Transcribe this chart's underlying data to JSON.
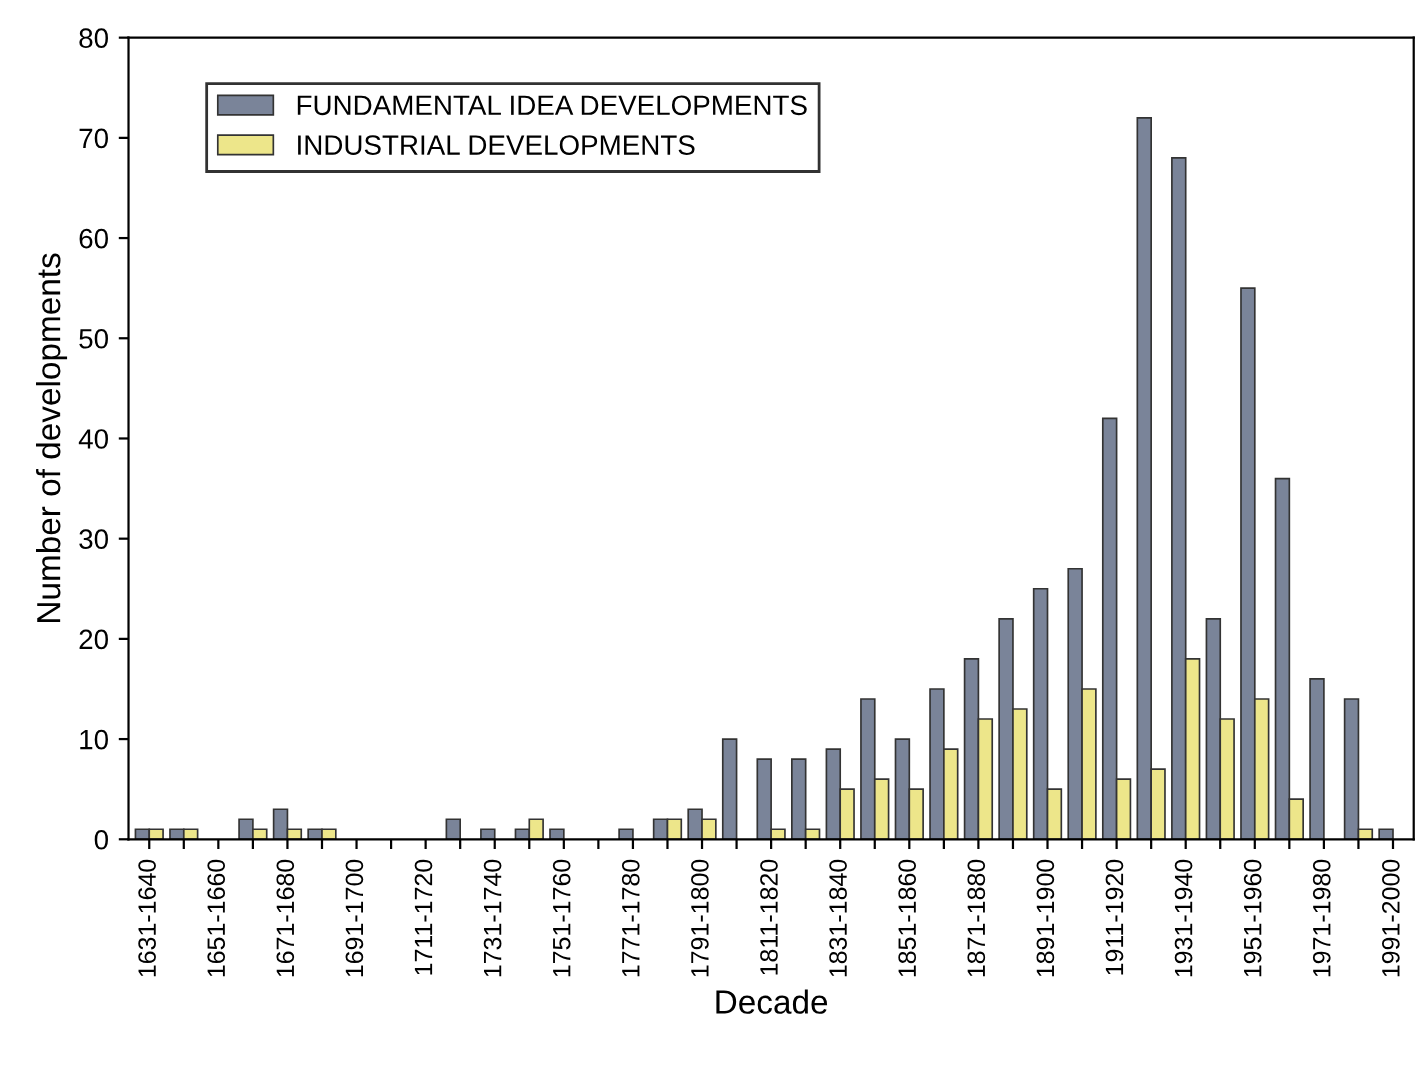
{
  "chart_data": {
    "type": "bar",
    "xlabel": "Decade",
    "ylabel": "Number of developments",
    "categories": [
      "1631-1640",
      null,
      "1651-1660",
      null,
      "1671-1680",
      null,
      "1691-1700",
      null,
      "1711-1720",
      null,
      "1731-1740",
      null,
      "1751-1760",
      null,
      "1771-1780",
      null,
      "1791-1800",
      null,
      "1811-1820",
      null,
      "1831-1840",
      null,
      "1851-1860",
      null,
      "1871-1880",
      null,
      "1891-1900",
      null,
      "1911-1920",
      null,
      "1931-1940",
      null,
      "1951-1960",
      null,
      "1971-1980",
      null,
      "1991-2000"
    ],
    "series": [
      {
        "name": "FUNDAMENTAL IDEA DEVELOPMENTS",
        "color": "#7a8499",
        "values": [
          1,
          1,
          0,
          2,
          3,
          1,
          0,
          0,
          0,
          2,
          1,
          1,
          1,
          0,
          1,
          2,
          3,
          10,
          8,
          8,
          9,
          14,
          10,
          15,
          18,
          22,
          25,
          27,
          42,
          72,
          68,
          22,
          55,
          36,
          16,
          14,
          1
        ]
      },
      {
        "name": "INDUSTRIAL DEVELOPMENTS",
        "color": "#ede68a",
        "values": [
          1,
          1,
          0,
          1,
          1,
          1,
          0,
          0,
          0,
          0,
          0,
          2,
          0,
          0,
          0,
          2,
          2,
          0,
          1,
          1,
          5,
          6,
          5,
          9,
          12,
          13,
          5,
          15,
          6,
          7,
          18,
          12,
          14,
          4,
          0,
          1,
          0
        ]
      }
    ],
    "ylim": [
      0,
      80
    ],
    "yticks": [
      0,
      10,
      20,
      30,
      40,
      50,
      60,
      70,
      80
    ],
    "legend": "top left",
    "grid": false
  }
}
